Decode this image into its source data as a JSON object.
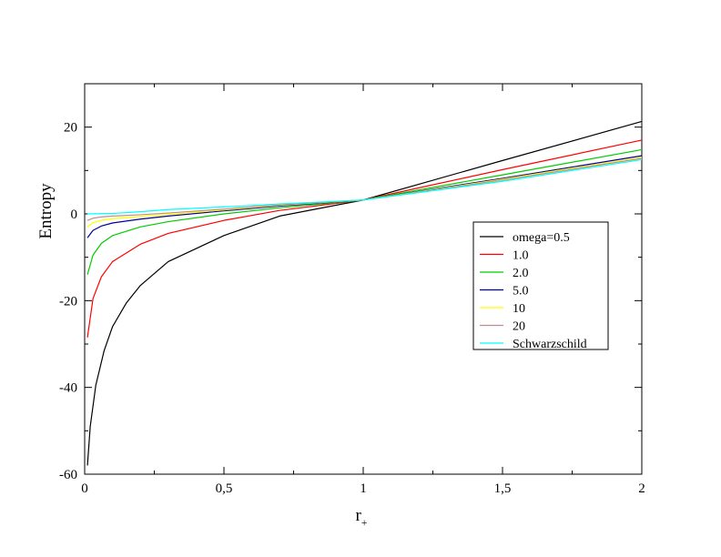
{
  "chart_data": {
    "type": "line",
    "title": "",
    "xlabel": "r",
    "xlabel_subscript": "+",
    "ylabel": "Entropy",
    "xlim": [
      0,
      2
    ],
    "ylim": [
      -60,
      30
    ],
    "x_ticks": [
      0,
      0.5,
      1,
      1.5,
      2
    ],
    "x_tick_labels": [
      "0",
      "0,5",
      "1",
      "1,5",
      "2"
    ],
    "y_ticks": [
      -60,
      -40,
      -20,
      0,
      20
    ],
    "y_tick_labels": [
      "-60",
      "-40",
      "-20",
      "0",
      "20"
    ],
    "grid": false,
    "legend_position": "right",
    "series": [
      {
        "name": "omega=0.5",
        "color": "#000000",
        "x": [
          0.01,
          0.02,
          0.04,
          0.07,
          0.1,
          0.15,
          0.2,
          0.3,
          0.5,
          0.7,
          1.0,
          1.5,
          2.0
        ],
        "y": [
          -58,
          -49,
          -39.5,
          -31.5,
          -26,
          -20.5,
          -16.5,
          -11,
          -5,
          -0.5,
          3.2,
          12.3,
          21.3
        ]
      },
      {
        "name": "1.0",
        "color": "#ff0000",
        "x": [
          0.01,
          0.03,
          0.06,
          0.1,
          0.2,
          0.3,
          0.5,
          0.7,
          1.0,
          1.5,
          2.0
        ],
        "y": [
          -28.5,
          -19.5,
          -14.5,
          -11,
          -7,
          -4.5,
          -1.5,
          0.8,
          3.2,
          10.2,
          17
        ]
      },
      {
        "name": "2.0",
        "color": "#00cc00",
        "x": [
          0.01,
          0.03,
          0.06,
          0.1,
          0.2,
          0.3,
          0.5,
          0.7,
          1.0,
          1.5,
          2.0
        ],
        "y": [
          -14,
          -9.5,
          -6.8,
          -5,
          -3,
          -1.8,
          0,
          1.4,
          3.2,
          9,
          14.8
        ]
      },
      {
        "name": "5.0",
        "color": "#000099",
        "x": [
          0.01,
          0.03,
          0.06,
          0.1,
          0.2,
          0.3,
          0.5,
          0.7,
          1.0,
          1.5,
          2.0
        ],
        "y": [
          -5.5,
          -3.8,
          -2.8,
          -2.1,
          -1.2,
          -0.5,
          0.7,
          1.8,
          3.2,
          8.2,
          13.4
        ]
      },
      {
        "name": "10",
        "color": "#ffff00",
        "x": [
          0.01,
          0.03,
          0.06,
          0.1,
          0.2,
          0.3,
          0.5,
          0.7,
          1.0,
          1.5,
          2.0
        ],
        "y": [
          -3,
          -2,
          -1.5,
          -1.1,
          -0.6,
          -0.1,
          0.9,
          2,
          3.2,
          8,
          13
        ]
      },
      {
        "name": "20",
        "color": "#bc8f8f",
        "x": [
          0.01,
          0.03,
          0.06,
          0.1,
          0.2,
          0.3,
          0.5,
          0.7,
          1.0,
          1.5,
          2.0
        ],
        "y": [
          -1.5,
          -1,
          -0.7,
          -0.5,
          -0.2,
          0.2,
          1.1,
          2.1,
          3.2,
          7.8,
          12.8
        ]
      },
      {
        "name": "Schwarzschild",
        "color": "#00ffff",
        "x": [
          0.01,
          0.1,
          0.2,
          0.3,
          0.5,
          0.7,
          1.0,
          1.5,
          2.0
        ],
        "y": [
          0,
          0.1,
          0.5,
          1.0,
          1.6,
          2.3,
          3.2,
          7.5,
          12.5
        ]
      }
    ]
  }
}
